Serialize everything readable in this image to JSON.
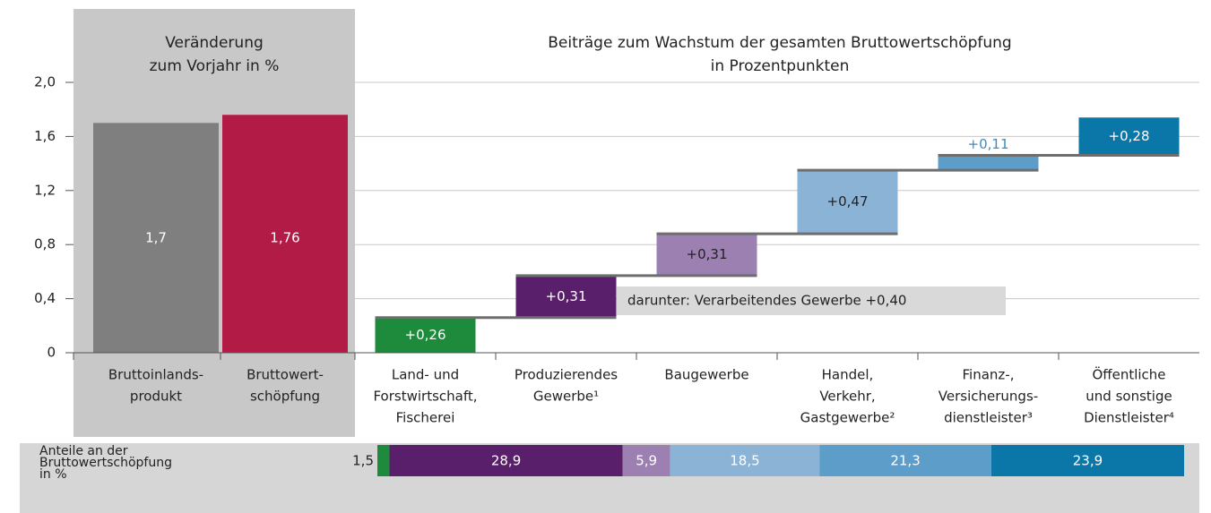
{
  "chart_data": [
    {
      "type": "bar",
      "title_lines": [
        "Veränderung",
        "zum Vorjahr in %"
      ],
      "categories": [
        [
          "Bruttoinlands-",
          "produkt"
        ],
        [
          "Bruttowert-",
          "schöpfung"
        ]
      ],
      "values": [
        1.7,
        1.76
      ],
      "value_labels": [
        "1,7",
        "1,76"
      ],
      "colors": [
        "#7f7f80",
        "#b31b47"
      ],
      "ylim": [
        0,
        2
      ],
      "yticks": [
        0,
        {
          "value": 0.4,
          "label": "0,4"
        },
        {
          "value": 0.8,
          "label": "0,8"
        },
        {
          "value": 1.2,
          "label": "1,2"
        },
        {
          "value": 1.6,
          "label": "1,6"
        },
        {
          "value": 2,
          "label": "2,0"
        }
      ],
      "grid": true
    },
    {
      "type": "waterfall",
      "title_lines": [
        "Beiträge zum Wachstum der gesamten Bruttowertschöpfung",
        "in Prozentpunkten"
      ],
      "categories": [
        [
          "Land- und",
          "Forstwirtschaft,",
          "Fischerei"
        ],
        [
          "Produzierendes",
          "Gewerbe¹"
        ],
        [
          "Baugewerbe"
        ],
        [
          "Handel,",
          "Verkehr,",
          "Gastgewerbe²"
        ],
        [
          "Finanz-,",
          "Versicherungs-",
          "dienstleister³"
        ],
        [
          "Öffentliche",
          "und sonstige",
          "Dienstleister⁴"
        ]
      ],
      "values": [
        0.26,
        0.31,
        0.31,
        0.47,
        0.11,
        0.28
      ],
      "value_labels": [
        "+0,26",
        "+0,31",
        "+0,31",
        "+0,47",
        "+0,11",
        "+0,28"
      ],
      "colors": [
        "#1d8a3c",
        "#5a1f6b",
        "#9d80b2",
        "#8bb3d6",
        "#5d9dca",
        "#0a77a8"
      ],
      "label_colors": [
        "#ffffff",
        "#ffffff",
        "#222222",
        "#222222",
        "#3a8cc4",
        "#ffffff"
      ],
      "annotation": "darunter: Verarbeitendes Gewerbe +0,40",
      "ylim": [
        0,
        2
      ]
    },
    {
      "type": "strip",
      "title_lines": [
        "Anteile an der",
        "Bruttowertschöpfung",
        "in %"
      ],
      "values": [
        1.5,
        28.9,
        5.9,
        18.5,
        21.3,
        23.9
      ],
      "value_labels": [
        "1,5",
        "28,9",
        "5,9",
        "18,5",
        "21,3",
        "23,9"
      ],
      "colors": [
        "#1d8a3c",
        "#5a1f6b",
        "#9d80b2",
        "#8bb3d6",
        "#5d9dca",
        "#0a77a8"
      ],
      "xlim": [
        0,
        100
      ]
    }
  ]
}
